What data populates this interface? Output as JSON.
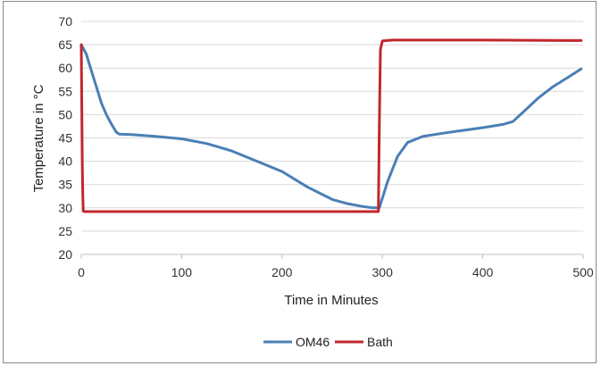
{
  "chart_data": {
    "type": "line",
    "title": "",
    "xlabel": "Time in Minutes",
    "ylabel": "Temperature in °C",
    "xlim": [
      0,
      500
    ],
    "ylim": [
      20,
      70
    ],
    "xticks": [
      0,
      100,
      200,
      300,
      400,
      500
    ],
    "yticks": [
      20,
      25,
      30,
      35,
      40,
      45,
      50,
      55,
      60,
      65,
      70
    ],
    "grid": "horizontal",
    "legend_position": "bottom",
    "series": [
      {
        "name": "OM46",
        "color": "#4a7fb5",
        "x": [
          0,
          5,
          10,
          15,
          20,
          25,
          30,
          35,
          38,
          50,
          75,
          100,
          125,
          150,
          175,
          200,
          225,
          250,
          265,
          280,
          290,
          297,
          305,
          315,
          325,
          340,
          360,
          380,
          400,
          420,
          430,
          440,
          455,
          470,
          485,
          498
        ],
        "y": [
          65,
          63,
          59.5,
          56,
          52.5,
          50,
          48,
          46.2,
          45.8,
          45.7,
          45.3,
          44.8,
          43.8,
          42.2,
          40,
          37.8,
          34.5,
          31.8,
          30.9,
          30.3,
          30,
          30,
          35.5,
          41,
          44,
          45.3,
          46,
          46.6,
          47.2,
          47.9,
          48.5,
          50.5,
          53.5,
          56,
          58,
          59.8
        ]
      },
      {
        "name": "Bath",
        "color": "#c0272d",
        "x": [
          0,
          1,
          1.5,
          2,
          3,
          50,
          100,
          200,
          296,
          297,
          298,
          300,
          310,
          400,
          498
        ],
        "y": [
          65,
          40,
          33,
          29.3,
          29.2,
          29.2,
          29.2,
          29.2,
          29.2,
          48,
          64,
          65.8,
          66,
          66,
          65.9
        ]
      }
    ]
  }
}
